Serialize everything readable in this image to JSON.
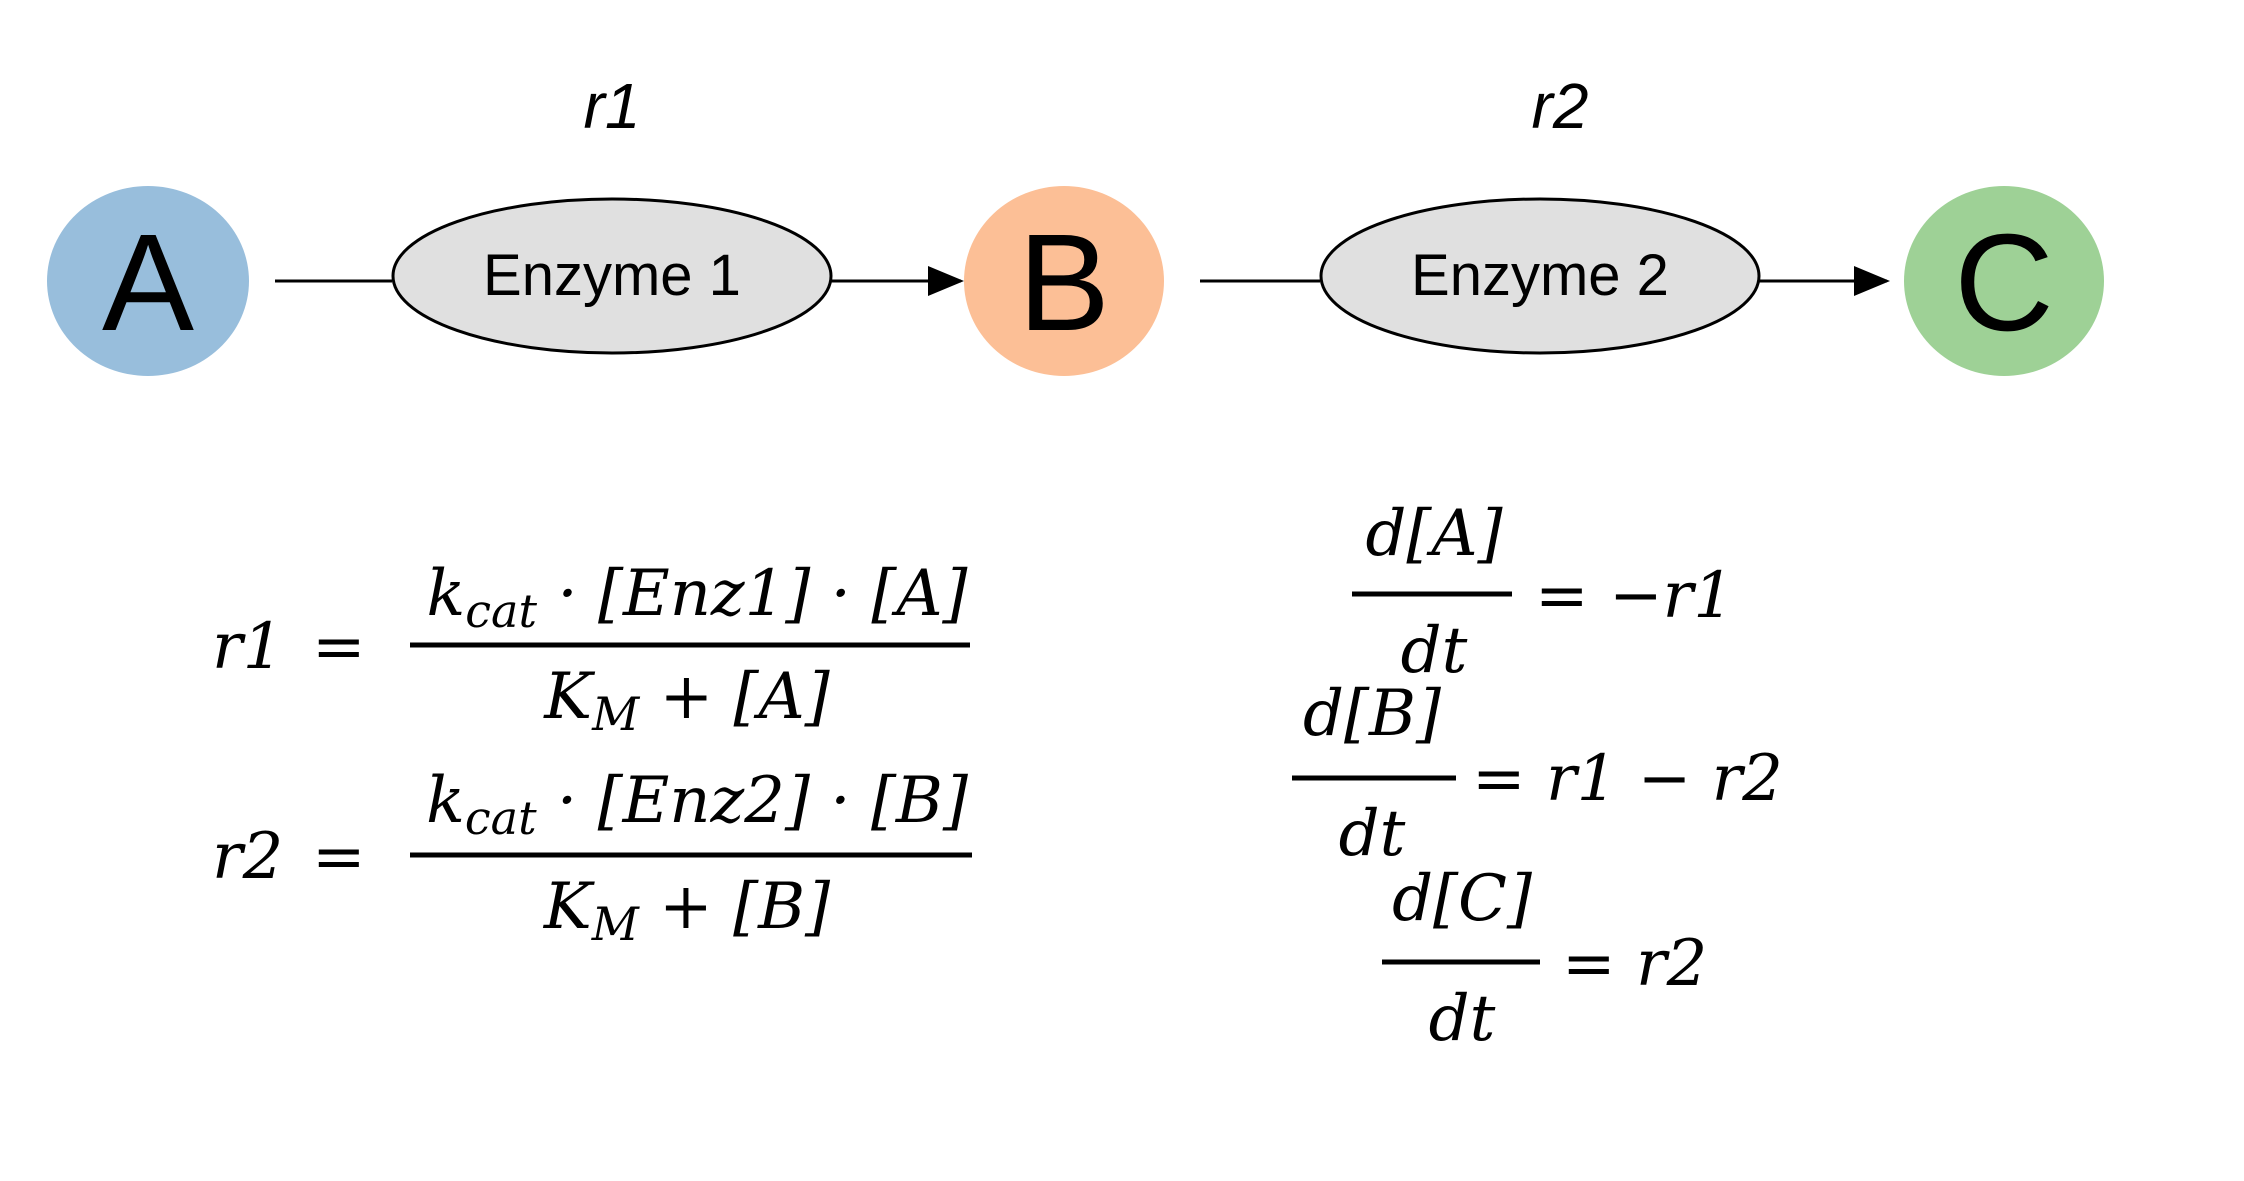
{
  "colors": {
    "node_a": "#98bedc",
    "node_b": "#fcbf96",
    "node_c": "#9ed196",
    "enzyme_fill": "#e0e0e0",
    "line": "#000000"
  },
  "pathway": {
    "nodes": {
      "a": "A",
      "b": "B",
      "c": "C"
    },
    "enzymes": {
      "e1": "Enzyme 1",
      "e2": "Enzyme 2"
    },
    "reactions": {
      "r1": "r1",
      "r2": "r2"
    }
  },
  "rate_equations": {
    "r1": {
      "lhs": "r1",
      "eq": "=",
      "k": "k",
      "cat": "cat",
      "num_rest": " · [Enz1] · [A]",
      "K": "K",
      "M": "M",
      "den_rest": " + [A]"
    },
    "r2": {
      "lhs": "r2",
      "eq": "=",
      "k": "k",
      "cat": "cat",
      "num_rest": " · [Enz2] · [B]",
      "K": "K",
      "M": "M",
      "den_rest": " + [B]"
    }
  },
  "ode_equations": {
    "a": {
      "num": "d[A]",
      "den": "dt",
      "rhs": "=  −r1"
    },
    "b": {
      "num": "d[B]",
      "den": "dt",
      "rhs": "=  r1 − r2"
    },
    "c": {
      "num": "d[C]",
      "den": "dt",
      "rhs": "=  r2"
    }
  }
}
